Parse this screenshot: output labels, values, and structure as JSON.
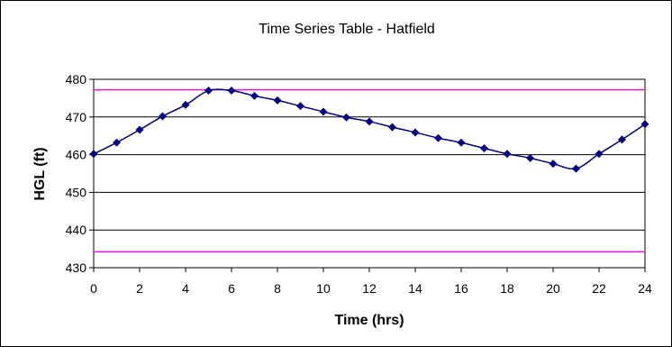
{
  "chart_data": {
    "type": "line",
    "title": "Time Series Table - Hatfield",
    "xlabel": "Time (hrs)",
    "ylabel": "HGL (ft)",
    "xlim": [
      0,
      24
    ],
    "ylim": [
      430,
      480
    ],
    "xticks": [
      0,
      2,
      4,
      6,
      8,
      10,
      12,
      14,
      16,
      18,
      20,
      22,
      24
    ],
    "yticks": [
      430,
      440,
      450,
      460,
      470,
      480
    ],
    "grid": "horizontal",
    "legend": "none",
    "series": [
      {
        "color": "#000080",
        "marker": "diamond",
        "x": [
          0,
          1,
          2,
          3,
          4,
          5,
          6,
          7,
          8,
          9,
          10,
          11,
          12,
          13,
          14,
          15,
          16,
          17,
          18,
          19,
          20,
          21,
          22,
          23,
          24
        ],
        "values": [
          460.2,
          463.2,
          466.6,
          470.2,
          473.2,
          477.0,
          477.0,
          475.6,
          474.4,
          472.9,
          471.4,
          469.9,
          468.8,
          467.3,
          465.9,
          464.4,
          463.2,
          461.7,
          460.2,
          459.1,
          457.6,
          456.3,
          460.2,
          464.0,
          468.1
        ]
      }
    ],
    "reference_lines": [
      {
        "y": 477.2,
        "color": "#ff00ff"
      },
      {
        "y": 434.2,
        "color": "#ff00ff"
      }
    ]
  }
}
